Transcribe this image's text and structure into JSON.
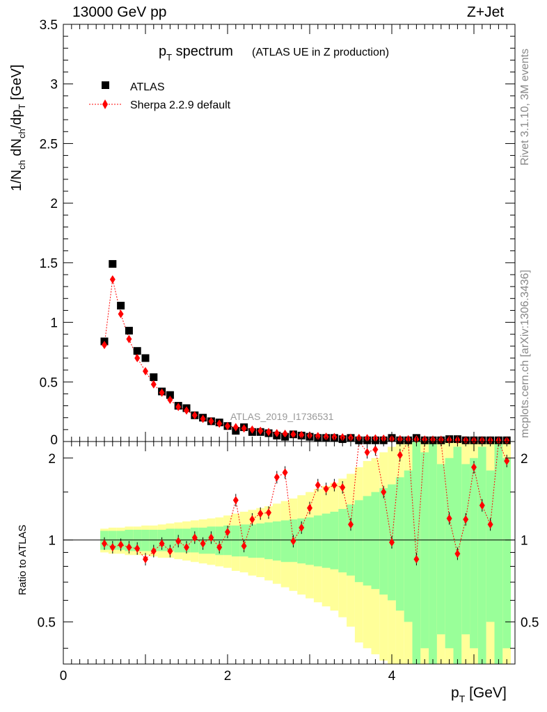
{
  "header": {
    "left": "13000 GeV pp",
    "right": "Z+Jet"
  },
  "side_labels": {
    "rivet": "Rivet 3.1.10,  3M events",
    "mcplots": "mcplots.cern.ch [arXiv:1306.3436]"
  },
  "chart_data": {
    "type": "scatter",
    "title_main": "p",
    "title_sub": "T",
    "title_rest": " spectrum",
    "title_small": "(ATLAS UE in Z production)",
    "watermark": "ATLAS_2019_I1736531",
    "xlabel": "p",
    "xlabel_sub": "T",
    "xlabel_unit": " [GeV]",
    "ylabel_top": "1/N",
    "ylabel_sub1": "ch",
    "ylabel_mid": " dN",
    "ylabel_sub2": "ch",
    "ylabel_end": "/dp",
    "ylabel_sub3": "T",
    "ylabel_unit": " [GeV]",
    "ratio_ylabel": "Ratio to ATLAS",
    "xlim": [
      0,
      5.5
    ],
    "ylim_main": [
      0,
      3.5
    ],
    "ylim_ratio": [
      0.35,
      2.3
    ],
    "x_ticks": [
      "0",
      "2",
      "4"
    ],
    "y_ticks_main": [
      "0",
      "0.5",
      "1",
      "1.5",
      "2",
      "2.5",
      "3",
      "3.5"
    ],
    "y_ticks_ratio": [
      "0.5",
      "1",
      "2"
    ],
    "legend": [
      {
        "name": "ATLAS",
        "color": "#000000",
        "marker": "square"
      },
      {
        "name": "Sherpa 2.2.9 default",
        "color": "#ff0000",
        "marker": "diamond"
      }
    ],
    "x": [
      0.5,
      0.6,
      0.7,
      0.8,
      0.9,
      1.0,
      1.1,
      1.2,
      1.3,
      1.4,
      1.5,
      1.6,
      1.7,
      1.8,
      1.9,
      2.0,
      2.1,
      2.2,
      2.3,
      2.4,
      2.5,
      2.6,
      2.7,
      2.8,
      2.9,
      3.0,
      3.1,
      3.2,
      3.3,
      3.4,
      3.5,
      3.6,
      3.7,
      3.8,
      3.9,
      4.0,
      4.1,
      4.2,
      4.3,
      4.4,
      4.5,
      4.6,
      4.7,
      4.8,
      4.9,
      5.0,
      5.1,
      5.2,
      5.3,
      5.4
    ],
    "series": [
      {
        "name": "ATLAS",
        "values": [
          0.84,
          1.49,
          1.14,
          0.93,
          0.76,
          0.7,
          0.54,
          0.42,
          0.39,
          0.3,
          0.28,
          0.22,
          0.2,
          0.17,
          0.16,
          0.13,
          0.09,
          0.12,
          0.08,
          0.08,
          0.07,
          0.05,
          0.04,
          0.06,
          0.05,
          0.04,
          0.03,
          0.03,
          0.03,
          0.02,
          0.03,
          0.01,
          0.01,
          0.01,
          0.01,
          0.03,
          0.01,
          0.01,
          0.03,
          0.01,
          0.01,
          0.01,
          0.02,
          0.02,
          0.01,
          0.01,
          0.01,
          0.01,
          0.01,
          0.01
        ]
      },
      {
        "name": "Sherpa 2.2.9 default",
        "values": [
          0.81,
          1.36,
          1.07,
          0.86,
          0.7,
          0.59,
          0.48,
          0.41,
          0.35,
          0.29,
          0.26,
          0.22,
          0.19,
          0.17,
          0.15,
          0.13,
          0.12,
          0.11,
          0.1,
          0.09,
          0.08,
          0.07,
          0.065,
          0.06,
          0.055,
          0.05,
          0.045,
          0.04,
          0.038,
          0.035,
          0.032,
          0.03,
          0.028,
          0.026,
          0.024,
          0.022,
          0.02,
          0.019,
          0.018,
          0.017,
          0.016,
          0.015,
          0.014,
          0.013,
          0.012,
          0.011,
          0.011,
          0.01,
          0.01,
          0.009
        ]
      }
    ],
    "ratio": [
      0.97,
      0.94,
      0.96,
      0.94,
      0.93,
      0.85,
      0.91,
      0.97,
      0.91,
      0.99,
      0.94,
      1.02,
      0.97,
      1.02,
      0.94,
      1.07,
      1.4,
      0.95,
      1.19,
      1.25,
      1.26,
      1.7,
      1.77,
      0.99,
      1.11,
      1.31,
      1.59,
      1.54,
      1.59,
      1.56,
      1.14,
      2.55,
      2.1,
      2.15,
      1.5,
      0.98,
      2.05,
      2.6,
      0.85,
      2.6,
      2.6,
      2.6,
      1.2,
      0.89,
      1.19,
      1.85,
      1.34,
      1.14,
      2.6,
      1.95
    ],
    "band_inner": [
      [
        0.92,
        1.08
      ],
      [
        0.92,
        1.08
      ],
      [
        0.92,
        1.08
      ],
      [
        0.91,
        1.09
      ],
      [
        0.91,
        1.09
      ],
      [
        0.91,
        1.09
      ],
      [
        0.91,
        1.09
      ],
      [
        0.91,
        1.09
      ],
      [
        0.91,
        1.1
      ],
      [
        0.9,
        1.1
      ],
      [
        0.9,
        1.1
      ],
      [
        0.9,
        1.11
      ],
      [
        0.89,
        1.11
      ],
      [
        0.89,
        1.12
      ],
      [
        0.88,
        1.12
      ],
      [
        0.88,
        1.13
      ],
      [
        0.87,
        1.13
      ],
      [
        0.87,
        1.14
      ],
      [
        0.86,
        1.14
      ],
      [
        0.86,
        1.15
      ],
      [
        0.85,
        1.16
      ],
      [
        0.84,
        1.17
      ],
      [
        0.83,
        1.18
      ],
      [
        0.83,
        1.19
      ],
      [
        0.82,
        1.2
      ],
      [
        0.81,
        1.21
      ],
      [
        0.8,
        1.23
      ],
      [
        0.79,
        1.25
      ],
      [
        0.78,
        1.27
      ],
      [
        0.76,
        1.3
      ],
      [
        0.74,
        1.35
      ],
      [
        0.7,
        1.4
      ],
      [
        0.68,
        1.45
      ],
      [
        0.66,
        1.5
      ],
      [
        0.63,
        1.55
      ],
      [
        0.6,
        1.6
      ],
      [
        0.55,
        1.7
      ],
      [
        0.5,
        1.8
      ],
      [
        0.35,
        2.3
      ],
      [
        0.4,
        2.1
      ],
      [
        0.35,
        2.3
      ],
      [
        0.45,
        1.9
      ],
      [
        0.4,
        2.0
      ],
      [
        0.35,
        2.2
      ],
      [
        0.45,
        1.9
      ],
      [
        0.4,
        2.0
      ],
      [
        0.35,
        2.2
      ],
      [
        0.5,
        1.8
      ],
      [
        0.35,
        2.3
      ],
      [
        0.4,
        2.0
      ]
    ],
    "band_outer": [
      [
        0.9,
        1.1
      ],
      [
        0.89,
        1.11
      ],
      [
        0.89,
        1.11
      ],
      [
        0.88,
        1.12
      ],
      [
        0.88,
        1.12
      ],
      [
        0.88,
        1.13
      ],
      [
        0.87,
        1.13
      ],
      [
        0.86,
        1.14
      ],
      [
        0.86,
        1.15
      ],
      [
        0.85,
        1.16
      ],
      [
        0.84,
        1.17
      ],
      [
        0.83,
        1.18
      ],
      [
        0.82,
        1.19
      ],
      [
        0.81,
        1.2
      ],
      [
        0.8,
        1.21
      ],
      [
        0.79,
        1.23
      ],
      [
        0.77,
        1.25
      ],
      [
        0.76,
        1.27
      ],
      [
        0.74,
        1.29
      ],
      [
        0.73,
        1.31
      ],
      [
        0.71,
        1.33
      ],
      [
        0.69,
        1.36
      ],
      [
        0.67,
        1.39
      ],
      [
        0.65,
        1.42
      ],
      [
        0.63,
        1.46
      ],
      [
        0.61,
        1.5
      ],
      [
        0.59,
        1.54
      ],
      [
        0.57,
        1.58
      ],
      [
        0.55,
        1.62
      ],
      [
        0.52,
        1.68
      ],
      [
        0.48,
        1.75
      ],
      [
        0.42,
        1.85
      ],
      [
        0.4,
        1.95
      ],
      [
        0.38,
        2.0
      ],
      [
        0.36,
        2.1
      ],
      [
        0.35,
        2.2
      ],
      [
        0.35,
        2.3
      ],
      [
        0.35,
        2.3
      ],
      [
        0.35,
        2.3
      ],
      [
        0.35,
        2.3
      ],
      [
        0.35,
        2.3
      ],
      [
        0.35,
        2.3
      ],
      [
        0.35,
        2.3
      ],
      [
        0.35,
        2.3
      ],
      [
        0.35,
        2.3
      ],
      [
        0.35,
        2.3
      ],
      [
        0.35,
        2.3
      ],
      [
        0.35,
        2.3
      ],
      [
        0.35,
        2.3
      ],
      [
        0.35,
        2.3
      ]
    ],
    "colors": {
      "data": "#000000",
      "mc": "#ff0000",
      "band_inner": "#99ff99",
      "band_outer": "#ffff99",
      "watermark": "#999999"
    }
  }
}
